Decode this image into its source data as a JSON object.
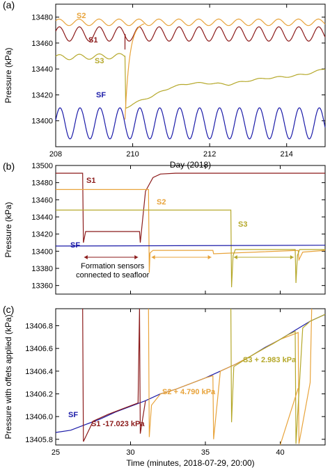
{
  "chart_data": [
    {
      "type": "line",
      "panel_label": "(a)",
      "title": "",
      "xlabel": "Day (2018)",
      "ylabel": "Pressure (kPa)",
      "xlim": [
        208,
        215
      ],
      "ylim": [
        13380,
        13490
      ],
      "x_ticks": [
        208,
        210,
        212,
        214
      ],
      "y_ticks": [
        13400,
        13420,
        13440,
        13460,
        13480
      ],
      "series": [
        {
          "name": "S2",
          "color": "#e8a33a",
          "mean": 13476,
          "amplitude": 2.5,
          "after_step_mean": 13476
        },
        {
          "name": "S1",
          "color": "#8b1a1a",
          "mean": 13467,
          "amplitude": 5.5
        },
        {
          "name": "S3",
          "color": "#b5a82a",
          "x": [
            208,
            209.8,
            209.82,
            210.0,
            210.5,
            211.0,
            211.5,
            212.0,
            212.5,
            213.0,
            213.5,
            214.0,
            214.5,
            215.0
          ],
          "y": [
            13449,
            13450,
            13410,
            13413,
            13419,
            13426,
            13429,
            13429,
            13428,
            13431,
            13433,
            13434,
            13436,
            13440
          ]
        },
        {
          "name": "SF",
          "color": "#1a1aa8",
          "mean": 13398,
          "amplitude": 12
        }
      ]
    },
    {
      "type": "line",
      "panel_label": "(b)",
      "title": "",
      "xlabel": "",
      "ylabel": "Pressure (kPa)",
      "xlim": [
        25,
        43
      ],
      "ylim": [
        13350,
        13500
      ],
      "y_ticks": [
        13360,
        13380,
        13400,
        13420,
        13440,
        13460,
        13480,
        13500
      ],
      "annotation": "Formation sensors connected to seafloor",
      "annotation_lines": [
        "Formation sensors",
        "connected to seafloor"
      ],
      "series": [
        {
          "name": "S1",
          "color": "#8b1a1a",
          "x": [
            25,
            26.8,
            26.85,
            27.0,
            30.6,
            30.65,
            31.0,
            31.5,
            32.0,
            33.0,
            43
          ],
          "y": [
            13491,
            13491,
            13410,
            13423,
            13423,
            13410,
            13470,
            13486,
            13490,
            13491,
            13491
          ]
        },
        {
          "name": "S2",
          "color": "#e8a33a",
          "x": [
            25,
            31.2,
            31.25,
            31.3,
            31.5,
            35.5,
            35.55,
            41.2,
            41.25,
            41.5,
            43
          ],
          "y": [
            13472,
            13472,
            13375,
            13398,
            13401,
            13401,
            13397,
            13401,
            13390,
            13399,
            13401
          ]
        },
        {
          "name": "S3",
          "color": "#b5a82a",
          "x": [
            25,
            36.7,
            36.75,
            36.85,
            37.0,
            41.0,
            41.05,
            41.15,
            41.3,
            43
          ],
          "y": [
            13448,
            13448,
            13358,
            13395,
            13402,
            13402,
            13363,
            13395,
            13402,
            13402
          ]
        },
        {
          "name": "SF",
          "color": "#1a1aa8",
          "x": [
            25,
            43
          ],
          "y": [
            13406,
            13407
          ]
        }
      ]
    },
    {
      "type": "line",
      "panel_label": "(c)",
      "title": "",
      "xlabel": "Time (minutes, 2018-07-29, 20:00)",
      "ylabel": "Pressure with offets applied (kPa)",
      "xlim": [
        25,
        43
      ],
      "ylim": [
        13405.75,
        13406.95
      ],
      "x_ticks": [
        25,
        30,
        35,
        40
      ],
      "y_ticks": [
        13405.8,
        13406.0,
        13406.2,
        13406.4,
        13406.6,
        13406.8
      ],
      "series": [
        {
          "name": "SF",
          "color": "#1a1aa8",
          "x": [
            25,
            26,
            27,
            28,
            29,
            30,
            31,
            32,
            33,
            34,
            35,
            36,
            37,
            38,
            39,
            40,
            41,
            42,
            43
          ],
          "y": [
            13405.86,
            13405.88,
            13405.93,
            13405.98,
            13406.04,
            13406.09,
            13406.14,
            13406.2,
            13406.24,
            13406.29,
            13406.34,
            13406.4,
            13406.46,
            13406.53,
            13406.61,
            13406.68,
            13406.76,
            13406.84,
            13406.9
          ]
        },
        {
          "name": "S1 -17.023 kPa",
          "color": "#8b1a1a",
          "x": [
            26.8,
            26.85,
            27.5,
            28.5,
            29.5,
            30.5,
            30.6,
            30.65,
            31.0
          ],
          "y": [
            13406.95,
            13405.78,
            13405.96,
            13406.02,
            13406.07,
            13406.12,
            13406.95,
            13405.85,
            13406.14
          ]
        },
        {
          "name": "S2 + 4.790 kPa",
          "color": "#e8a33a",
          "x": [
            31.2,
            31.25,
            31.4,
            32,
            33,
            34,
            35,
            35.5,
            35.55,
            36,
            37,
            38,
            40,
            41.2,
            41.25,
            42,
            42.1
          ],
          "y": [
            13406.95,
            13405.82,
            13406.1,
            13406.2,
            13406.24,
            13406.29,
            13406.34,
            13406.36,
            13405.8,
            13406.4,
            13406.46,
            13406.53,
            13406.68,
            13406.74,
            13405.76,
            13406.3,
            13406.95
          ]
        },
        {
          "name": "S3 + 2.983 kPa",
          "color": "#b5a82a",
          "x": [
            36.7,
            36.75,
            36.9,
            37.5,
            38.5,
            39.5,
            40.5,
            41.0,
            41.05,
            41.5,
            42,
            43
          ],
          "y": [
            13406.95,
            13405.95,
            13406.44,
            13406.49,
            13406.57,
            13406.64,
            13406.72,
            13406.75,
            13405.76,
            13406.78,
            13406.84,
            13406.9
          ]
        }
      ]
    }
  ]
}
